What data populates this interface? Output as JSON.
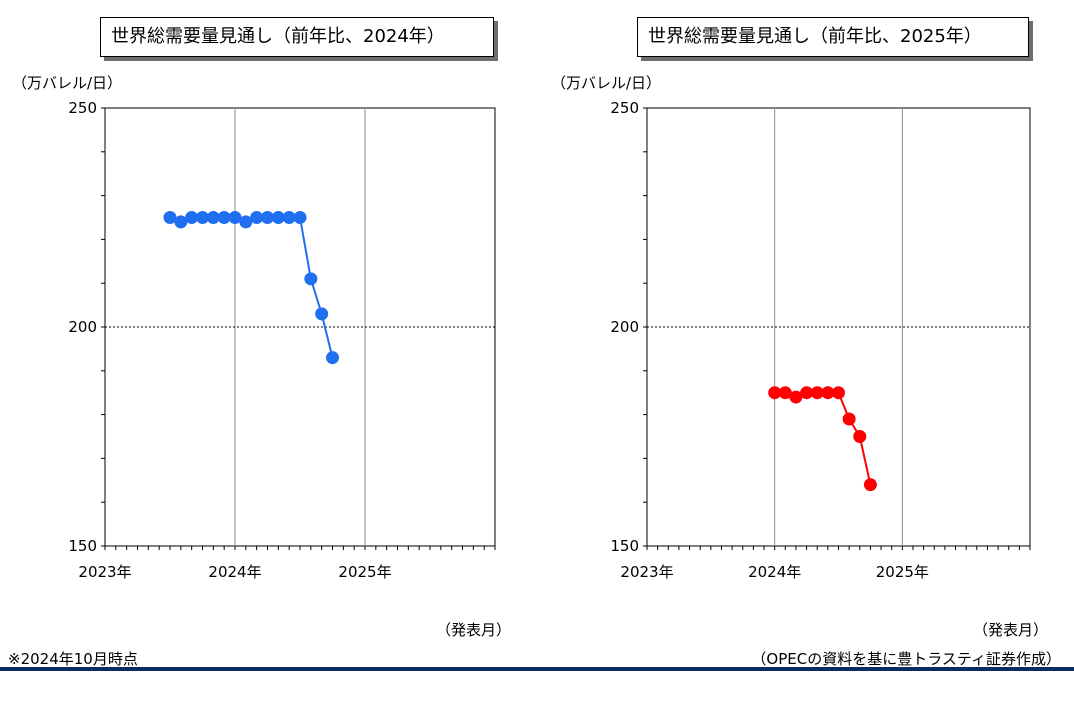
{
  "page": {
    "note": "※2024年10月時点",
    "source": "（OPECの資料を基に豊トラスティ証券作成）",
    "colors": {
      "bottom_rule": "#0b2c5c",
      "grid": "#8c8c8c",
      "ref_line": "#000000"
    }
  },
  "chart_data": [
    {
      "type": "line",
      "title": "世界総需要量見通し（前年比、2024年）",
      "ylabel": "（万バレル/日）",
      "xlabel": "（発表月）",
      "ylim": [
        150,
        250
      ],
      "yticks": [
        "250",
        "200",
        "150"
      ],
      "xlim": [
        "2023-01",
        "2025-12"
      ],
      "xticks": [
        "2023年",
        "2024年",
        "2025年"
      ],
      "reference_line": 200,
      "grid": true,
      "series": [
        {
          "color": "#1f6ff0",
          "x": [
            "2023-07",
            "2023-08",
            "2023-09",
            "2023-10",
            "2023-11",
            "2023-12",
            "2024-01",
            "2024-02",
            "2024-03",
            "2024-04",
            "2024-05",
            "2024-06",
            "2024-07",
            "2024-08",
            "2024-09",
            "2024-10"
          ],
          "values": [
            225,
            224,
            225,
            225,
            225,
            225,
            225,
            224,
            225,
            225,
            225,
            225,
            225,
            211,
            203,
            193
          ]
        }
      ]
    },
    {
      "type": "line",
      "title": "世界総需要量見通し（前年比、2025年）",
      "ylabel": "（万バレル/日）",
      "xlabel": "（発表月）",
      "ylim": [
        150,
        250
      ],
      "yticks": [
        "250",
        "200",
        "150"
      ],
      "xlim": [
        "2023-01",
        "2025-12"
      ],
      "xticks": [
        "2023年",
        "2024年",
        "2025年"
      ],
      "reference_line": 200,
      "grid": true,
      "series": [
        {
          "color": "#ff0000",
          "x": [
            "2024-01",
            "2024-02",
            "2024-03",
            "2024-04",
            "2024-05",
            "2024-06",
            "2024-07",
            "2024-08",
            "2024-09",
            "2024-10"
          ],
          "values": [
            185,
            185,
            184,
            185,
            185,
            185,
            185,
            179,
            175,
            164
          ]
        }
      ]
    }
  ]
}
